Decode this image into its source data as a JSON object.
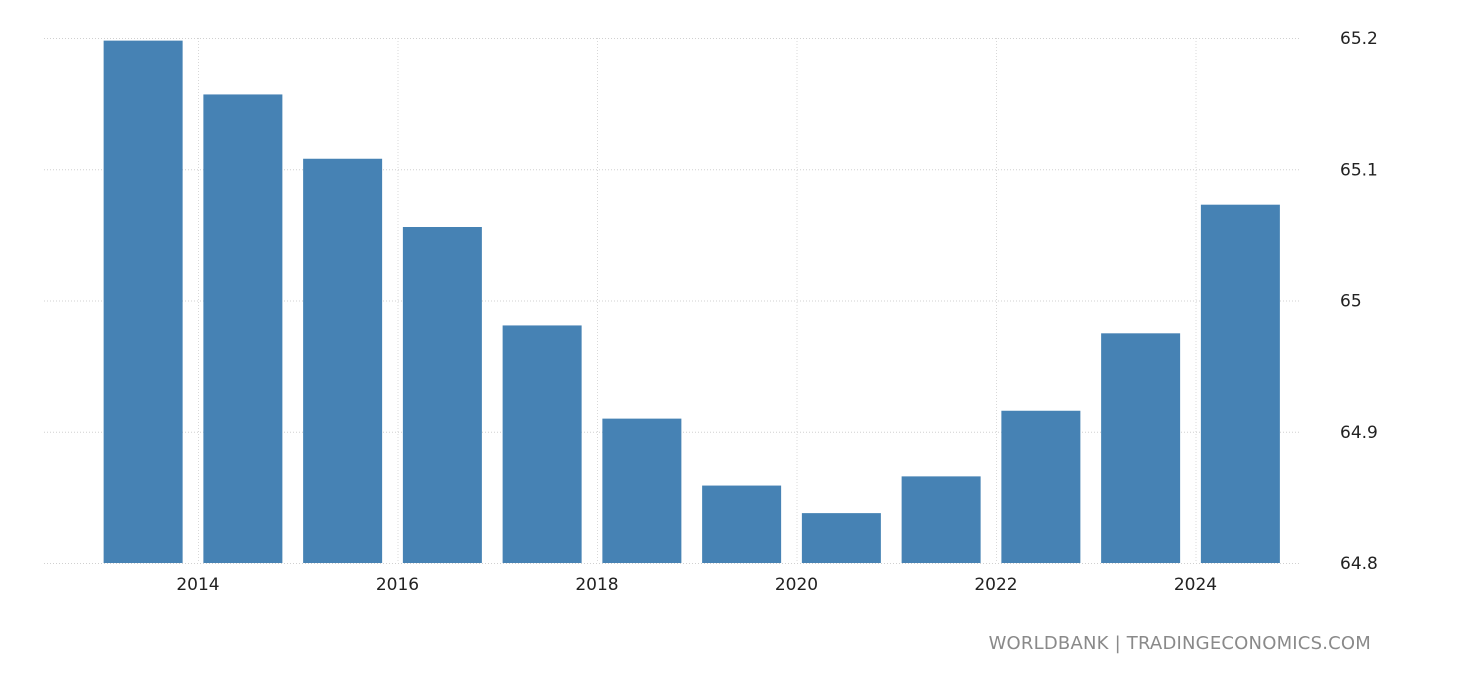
{
  "chart_data": {
    "type": "bar",
    "title": "",
    "xlabel": "",
    "ylabel": "",
    "categories": [
      "2013",
      "2014",
      "2015",
      "2016",
      "2017",
      "2018",
      "2019",
      "2020",
      "2021",
      "2022",
      "2023",
      "2024"
    ],
    "values": [
      65.198,
      65.157,
      65.108,
      65.056,
      64.981,
      64.91,
      64.859,
      64.838,
      64.866,
      64.916,
      64.975,
      65.073
    ],
    "ylim": [
      64.8,
      65.2
    ],
    "yticks": [
      "64.8",
      "64.9",
      "65",
      "65.1",
      "65.2"
    ],
    "yticks_values": [
      64.8,
      64.9,
      65.0,
      65.1,
      65.2
    ],
    "xticks": [
      "2014",
      "2016",
      "2018",
      "2020",
      "2022",
      "2024"
    ],
    "grid": true,
    "bar_color": "#4682b4",
    "y_axis_position": "right"
  },
  "source": "WORLDBANK | TRADINGECONOMICS.COM"
}
